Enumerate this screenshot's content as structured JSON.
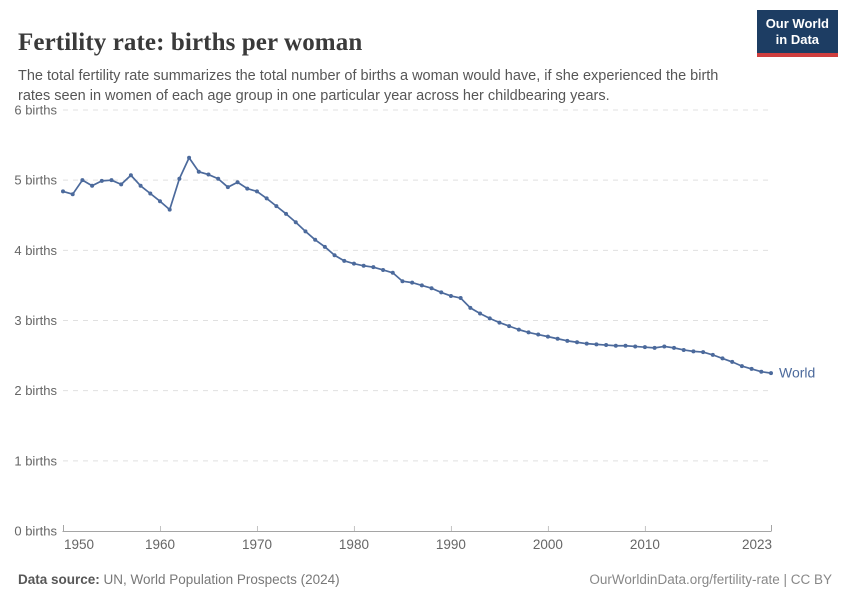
{
  "header": {
    "title": "Fertility rate: births per woman",
    "subtitle": "The total fertility rate summarizes the total number of births a woman would have, if she experienced the birth rates seen in women of each age group in one particular year across her childbearing years."
  },
  "logo": {
    "line1": "Our World",
    "line2": "in Data",
    "bg_color": "#1d3d63",
    "accent_color": "#cf3e3e"
  },
  "footer": {
    "source_label": "Data source:",
    "source_text": " UN, World Population Prospects (2024)",
    "credit": "OurWorldinData.org/fertility-rate | CC BY"
  },
  "chart_data": {
    "type": "line",
    "title": "Fertility rate: births per woman",
    "xlabel": "",
    "ylabel": "births per woman",
    "xlim": [
      1950,
      2023
    ],
    "ylim": [
      0,
      6
    ],
    "xticks": [
      1950,
      1960,
      1970,
      1980,
      1990,
      2000,
      2010,
      2023
    ],
    "yticks": [
      {
        "value": 0,
        "label": "0 births"
      },
      {
        "value": 1,
        "label": "1 births"
      },
      {
        "value": 2,
        "label": "2 births"
      },
      {
        "value": 3,
        "label": "3 births"
      },
      {
        "value": 4,
        "label": "4 births"
      },
      {
        "value": 5,
        "label": "5 births"
      },
      {
        "value": 6,
        "label": "6 births"
      }
    ],
    "grid": "horizontal-dashed",
    "grid_color": "#e0e0e0",
    "axis_color": "#a5a5a5",
    "tick_label_color": "#666666",
    "line_color": "#4c6a9c",
    "legend_position": "end-of-line",
    "series": [
      {
        "name": "World",
        "x": [
          1950,
          1951,
          1952,
          1953,
          1954,
          1955,
          1956,
          1957,
          1958,
          1959,
          1960,
          1961,
          1962,
          1963,
          1964,
          1965,
          1966,
          1967,
          1968,
          1969,
          1970,
          1971,
          1972,
          1973,
          1974,
          1975,
          1976,
          1977,
          1978,
          1979,
          1980,
          1981,
          1982,
          1983,
          1984,
          1985,
          1986,
          1987,
          1988,
          1989,
          1990,
          1991,
          1992,
          1993,
          1994,
          1995,
          1996,
          1997,
          1998,
          1999,
          2000,
          2001,
          2002,
          2003,
          2004,
          2005,
          2006,
          2007,
          2008,
          2009,
          2010,
          2011,
          2012,
          2013,
          2014,
          2015,
          2016,
          2017,
          2018,
          2019,
          2020,
          2021,
          2022,
          2023
        ],
        "values": [
          4.84,
          4.8,
          5.0,
          4.92,
          4.99,
          5.0,
          4.94,
          5.07,
          4.92,
          4.81,
          4.7,
          4.58,
          5.02,
          5.32,
          5.12,
          5.08,
          5.02,
          4.9,
          4.97,
          4.88,
          4.84,
          4.74,
          4.63,
          4.52,
          4.4,
          4.27,
          4.15,
          4.05,
          3.93,
          3.85,
          3.81,
          3.78,
          3.76,
          3.72,
          3.68,
          3.56,
          3.54,
          3.5,
          3.46,
          3.4,
          3.35,
          3.32,
          3.18,
          3.1,
          3.03,
          2.97,
          2.92,
          2.87,
          2.83,
          2.8,
          2.77,
          2.74,
          2.71,
          2.69,
          2.67,
          2.66,
          2.65,
          2.64,
          2.64,
          2.63,
          2.62,
          2.61,
          2.63,
          2.61,
          2.58,
          2.56,
          2.55,
          2.51,
          2.46,
          2.41,
          2.35,
          2.31,
          2.27,
          2.25
        ]
      }
    ]
  }
}
